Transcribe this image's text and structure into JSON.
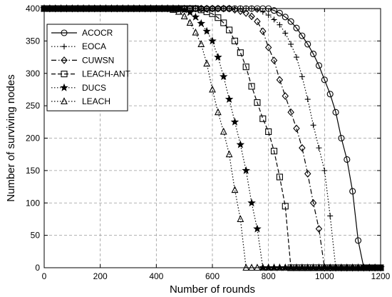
{
  "chart_data": {
    "type": "line",
    "title": "",
    "xlabel": "Number of rounds",
    "ylabel": "Number of surviving nodes",
    "xlim": [
      0,
      1200
    ],
    "ylim": [
      0,
      400
    ],
    "xticks": [
      0,
      200,
      400,
      600,
      800,
      1000,
      1200
    ],
    "yticks": [
      0,
      50,
      100,
      150,
      200,
      250,
      300,
      350,
      400
    ],
    "xtick_labels": [
      "0",
      "200",
      "400",
      "600",
      "800",
      "1000",
      "1200"
    ],
    "ytick_labels": [
      "0",
      "50",
      "100",
      "150",
      "200",
      "250",
      "300",
      "350",
      "400"
    ],
    "grid": true,
    "legend_position": "top-left",
    "series": [
      {
        "name": "ACOCR",
        "line_style": "solid",
        "marker": "circle",
        "x": [
          0,
          20,
          40,
          60,
          80,
          100,
          120,
          140,
          160,
          180,
          200,
          220,
          240,
          260,
          280,
          300,
          320,
          340,
          360,
          380,
          400,
          420,
          440,
          460,
          480,
          500,
          520,
          540,
          560,
          580,
          600,
          620,
          640,
          660,
          680,
          700,
          720,
          740,
          760,
          780,
          800,
          820,
          840,
          860,
          880,
          900,
          920,
          940,
          960,
          980,
          1000,
          1020,
          1040,
          1060,
          1080,
          1100,
          1120,
          1140,
          1160,
          1180,
          1200
        ],
        "y": [
          400,
          400,
          400,
          400,
          400,
          400,
          400,
          400,
          400,
          400,
          400,
          400,
          400,
          400,
          400,
          400,
          400,
          400,
          400,
          400,
          400,
          400,
          400,
          400,
          400,
          400,
          400,
          400,
          400,
          400,
          400,
          400,
          400,
          400,
          400,
          400,
          400,
          400,
          400,
          400,
          400,
          397,
          393,
          387,
          380,
          370,
          358,
          345,
          330,
          312,
          290,
          268,
          240,
          200,
          167,
          118,
          42,
          0,
          0,
          0,
          0
        ]
      },
      {
        "name": "EOCA",
        "line_style": "dotted",
        "marker": "plus",
        "x": [
          0,
          20,
          40,
          60,
          80,
          100,
          120,
          140,
          160,
          180,
          200,
          220,
          240,
          260,
          280,
          300,
          320,
          340,
          360,
          380,
          400,
          420,
          440,
          460,
          480,
          500,
          520,
          540,
          560,
          580,
          600,
          620,
          640,
          660,
          680,
          700,
          720,
          740,
          760,
          780,
          800,
          820,
          840,
          860,
          880,
          900,
          920,
          940,
          960,
          980,
          1000,
          1020,
          1040,
          1060,
          1080,
          1100,
          1120,
          1140,
          1160,
          1180,
          1200
        ],
        "y": [
          400,
          400,
          400,
          400,
          400,
          400,
          400,
          400,
          400,
          400,
          400,
          400,
          400,
          400,
          400,
          400,
          400,
          400,
          400,
          400,
          400,
          400,
          400,
          400,
          400,
          400,
          400,
          400,
          400,
          400,
          400,
          400,
          400,
          400,
          400,
          400,
          400,
          400,
          398,
          395,
          390,
          383,
          375,
          362,
          345,
          325,
          295,
          260,
          220,
          185,
          150,
          80,
          0,
          0,
          0,
          0,
          0,
          0,
          0,
          0,
          0
        ]
      },
      {
        "name": "CUWSN",
        "line_style": "dash-dot",
        "marker": "diamond",
        "x": [
          0,
          20,
          40,
          60,
          80,
          100,
          120,
          140,
          160,
          180,
          200,
          220,
          240,
          260,
          280,
          300,
          320,
          340,
          360,
          380,
          400,
          420,
          440,
          460,
          480,
          500,
          520,
          540,
          560,
          580,
          600,
          620,
          640,
          660,
          680,
          700,
          720,
          740,
          760,
          780,
          800,
          820,
          840,
          860,
          880,
          900,
          920,
          940,
          960,
          980,
          1000,
          1020,
          1040,
          1060,
          1080,
          1100,
          1120,
          1140,
          1160,
          1180,
          1200
        ],
        "y": [
          400,
          400,
          400,
          400,
          400,
          400,
          400,
          400,
          400,
          400,
          400,
          400,
          400,
          400,
          400,
          400,
          400,
          400,
          400,
          400,
          400,
          400,
          400,
          400,
          400,
          400,
          400,
          400,
          400,
          400,
          400,
          400,
          400,
          400,
          398,
          396,
          393,
          388,
          380,
          365,
          340,
          320,
          290,
          265,
          240,
          215,
          185,
          145,
          100,
          60,
          0,
          0,
          0,
          0,
          0,
          0,
          0,
          0,
          0,
          0,
          0
        ]
      },
      {
        "name": "LEACH-ANT",
        "line_style": "dashed",
        "marker": "square",
        "x": [
          0,
          20,
          40,
          60,
          80,
          100,
          120,
          140,
          160,
          180,
          200,
          220,
          240,
          260,
          280,
          300,
          320,
          340,
          360,
          380,
          400,
          420,
          440,
          460,
          480,
          500,
          520,
          540,
          560,
          580,
          600,
          620,
          640,
          660,
          680,
          700,
          720,
          740,
          760,
          780,
          800,
          820,
          840,
          860,
          880,
          900,
          920,
          940,
          960,
          980,
          1000,
          1020,
          1040,
          1060,
          1080,
          1100,
          1120,
          1140,
          1160,
          1180,
          1200
        ],
        "y": [
          400,
          400,
          400,
          400,
          400,
          400,
          400,
          400,
          400,
          400,
          400,
          400,
          400,
          400,
          400,
          400,
          400,
          400,
          400,
          400,
          400,
          400,
          400,
          400,
          400,
          400,
          400,
          400,
          398,
          395,
          392,
          386,
          378,
          367,
          350,
          332,
          310,
          280,
          255,
          230,
          210,
          180,
          140,
          95,
          0,
          0,
          0,
          0,
          0,
          0,
          0,
          0,
          0,
          0,
          0,
          0,
          0,
          0,
          0,
          0,
          0
        ]
      },
      {
        "name": "DUCS",
        "line_style": "dotted",
        "marker": "star",
        "x": [
          0,
          20,
          40,
          60,
          80,
          100,
          120,
          140,
          160,
          180,
          200,
          220,
          240,
          260,
          280,
          300,
          320,
          340,
          360,
          380,
          400,
          420,
          440,
          460,
          480,
          500,
          520,
          540,
          560,
          580,
          600,
          620,
          640,
          660,
          680,
          700,
          720,
          740,
          760,
          780,
          800,
          820,
          840,
          860,
          880,
          900,
          920,
          940,
          960,
          980,
          1000,
          1020,
          1040,
          1060,
          1080,
          1100,
          1120,
          1140,
          1160,
          1180,
          1200
        ],
        "y": [
          400,
          400,
          400,
          400,
          400,
          400,
          400,
          400,
          400,
          400,
          400,
          400,
          400,
          400,
          400,
          400,
          400,
          400,
          400,
          400,
          400,
          400,
          400,
          400,
          400,
          398,
          394,
          387,
          377,
          365,
          350,
          325,
          295,
          260,
          225,
          190,
          150,
          100,
          60,
          0,
          0,
          0,
          0,
          0,
          0,
          0,
          0,
          0,
          0,
          0,
          0,
          0,
          0,
          0,
          0,
          0,
          0,
          0,
          0,
          0,
          0
        ]
      },
      {
        "name": "LEACH",
        "line_style": "dotted",
        "marker": "triangle",
        "x": [
          0,
          20,
          40,
          60,
          80,
          100,
          120,
          140,
          160,
          180,
          200,
          220,
          240,
          260,
          280,
          300,
          320,
          340,
          360,
          380,
          400,
          420,
          440,
          460,
          480,
          500,
          520,
          540,
          560,
          580,
          600,
          620,
          640,
          660,
          680,
          700,
          720,
          740,
          760,
          780,
          800,
          820,
          840,
          860,
          880,
          900,
          920,
          940,
          960,
          980,
          1000,
          1020,
          1040,
          1060,
          1080,
          1100,
          1120,
          1140,
          1160,
          1180,
          1200
        ],
        "y": [
          400,
          400,
          400,
          400,
          400,
          400,
          400,
          400,
          400,
          400,
          400,
          400,
          400,
          400,
          400,
          400,
          400,
          400,
          400,
          400,
          400,
          400,
          400,
          398,
          395,
          388,
          378,
          363,
          345,
          315,
          275,
          240,
          210,
          175,
          120,
          75,
          0,
          0,
          0,
          0,
          0,
          0,
          0,
          0,
          0,
          0,
          0,
          0,
          0,
          0,
          0,
          0,
          0,
          0,
          0,
          0,
          0,
          0,
          0,
          0,
          0
        ]
      }
    ]
  }
}
